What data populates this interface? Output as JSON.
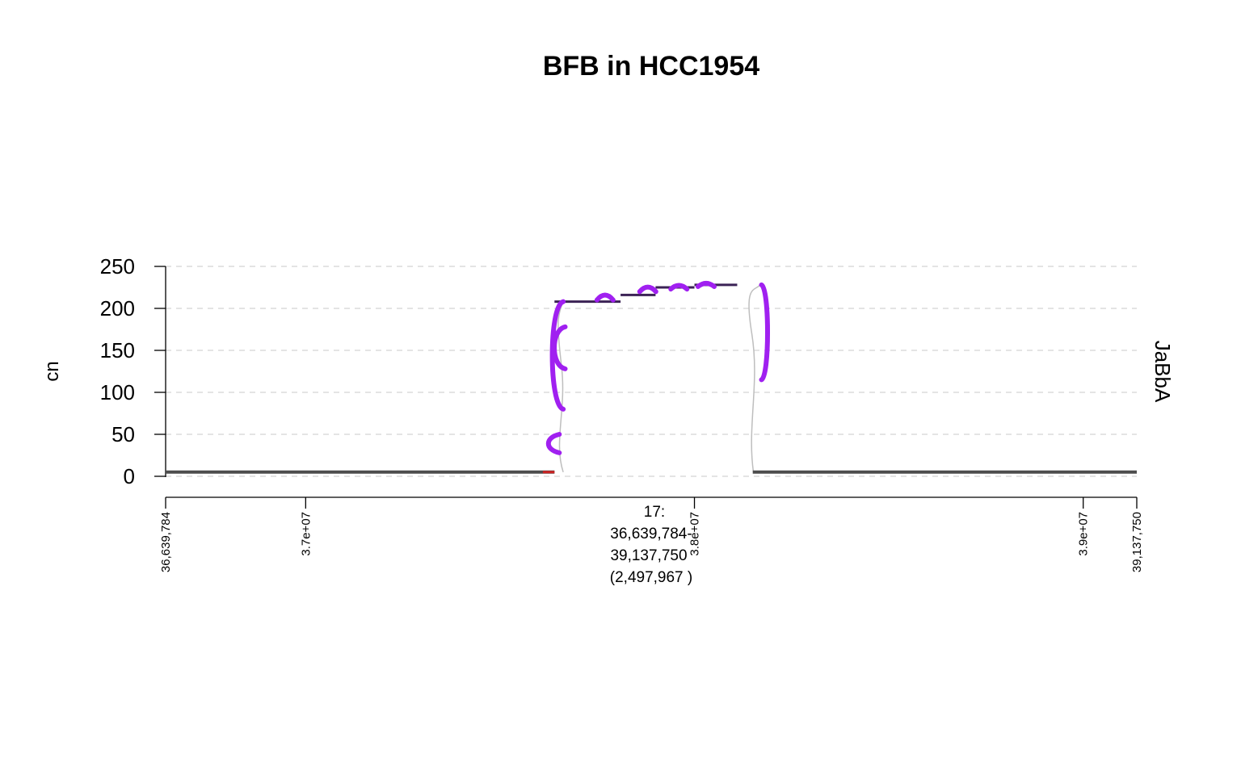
{
  "chart_data": {
    "type": "line",
    "title": "BFB in HCC1954",
    "ylabel": "cn",
    "track_label": "JaBbA",
    "ylim": [
      0,
      250
    ],
    "y_ticks": [
      0,
      50,
      100,
      150,
      200,
      250
    ],
    "xlim": [
      36639784,
      39137750
    ],
    "x_ticks": [
      {
        "value": 36639784,
        "label": "36,639,784"
      },
      {
        "value": 37000000,
        "label": "3.7e+07"
      },
      {
        "value": 38000000,
        "label": "3.8e+07"
      },
      {
        "value": 39000000,
        "label": "3.9e+07"
      },
      {
        "value": 39137750,
        "label": "39,137,750"
      }
    ],
    "chrom_label": [
      "17:",
      "36,639,784-",
      "39,137,750",
      "(2,497,967 )"
    ],
    "grid": true,
    "segments": [
      {
        "start": 36639784,
        "end": 37640000,
        "cn": 5
      },
      {
        "start": 37640000,
        "end": 37810000,
        "cn": 208
      },
      {
        "start": 37810000,
        "end": 37900000,
        "cn": 216
      },
      {
        "start": 37900000,
        "end": 38000000,
        "cn": 225
      },
      {
        "start": 38000000,
        "end": 38110000,
        "cn": 228
      },
      {
        "start": 38150000,
        "end": 39137750,
        "cn": 5
      }
    ],
    "junctions": [
      {
        "pos": 37650000,
        "cn_top": 208,
        "cn_bottom": 80,
        "type": "fold-back"
      },
      {
        "pos": 37655000,
        "cn_top": 178,
        "cn_bottom": 128,
        "type": "fold-back"
      },
      {
        "pos": 37640000,
        "cn_top": 50,
        "cn_bottom": 28,
        "type": "fold-back"
      },
      {
        "pos": 38160000,
        "cn_top": 228,
        "cn_bottom": 115,
        "type": "fold-back"
      },
      {
        "pos": 37770000,
        "cn_top": 216,
        "cn_bottom": 210,
        "type": "small"
      },
      {
        "pos": 37880000,
        "cn_top": 225,
        "cn_bottom": 220,
        "type": "small"
      },
      {
        "pos": 37960000,
        "cn_top": 226,
        "cn_bottom": 223,
        "type": "small"
      },
      {
        "pos": 38030000,
        "cn_top": 228,
        "cn_bottom": 226,
        "type": "small"
      }
    ],
    "colors": {
      "segment": "#4d4d4d",
      "high_segment": "#3b2255",
      "junction": "#a020f0",
      "connector": "#bebebe",
      "red_mark": "#cc2222",
      "grid": "#d3d3d3"
    }
  }
}
